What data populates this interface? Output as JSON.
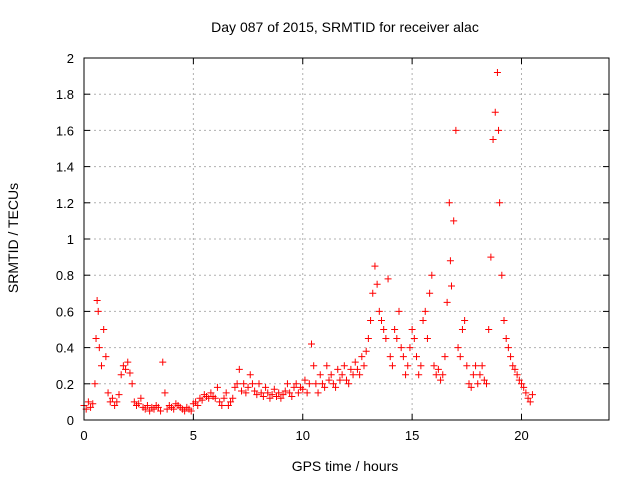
{
  "chart_data": {
    "type": "scatter",
    "title": "Day 087 of 2015, SRMTID for receiver alac",
    "xlabel": "GPS time / hours",
    "ylabel": "SRMTID / TECUs",
    "xlim": [
      0,
      24
    ],
    "ylim": [
      0,
      2
    ],
    "xticks": [
      0,
      5,
      10,
      15,
      20
    ],
    "xtick_labels": [
      "0",
      "5",
      "10",
      "15",
      "20"
    ],
    "yticks": [
      0,
      0.2,
      0.4,
      0.6,
      0.8,
      1,
      1.2,
      1.4,
      1.6,
      1.8,
      2
    ],
    "ytick_labels": [
      "0",
      "0.2",
      "0.4",
      "0.6",
      "0.8",
      "1",
      "1.2",
      "1.4",
      "1.6",
      "1.8",
      "2"
    ],
    "grid": true,
    "marker": "+",
    "color": "#ff0000",
    "series": [
      {
        "name": "SRMTID",
        "x": [
          0.0,
          0.1,
          0.2,
          0.3,
          0.4,
          0.5,
          0.55,
          0.6,
          0.65,
          0.7,
          0.8,
          0.9,
          1.0,
          1.1,
          1.2,
          1.3,
          1.4,
          1.5,
          1.6,
          1.7,
          1.8,
          1.9,
          2.0,
          2.1,
          2.2,
          2.3,
          2.4,
          2.5,
          2.6,
          2.7,
          2.8,
          2.9,
          3.0,
          3.1,
          3.2,
          3.3,
          3.4,
          3.5,
          3.6,
          3.7,
          3.8,
          3.9,
          4.0,
          4.1,
          4.2,
          4.3,
          4.4,
          4.5,
          4.6,
          4.7,
          4.8,
          4.9,
          5.0,
          5.1,
          5.2,
          5.3,
          5.4,
          5.5,
          5.6,
          5.7,
          5.8,
          5.9,
          6.0,
          6.1,
          6.2,
          6.3,
          6.4,
          6.5,
          6.6,
          6.7,
          6.8,
          6.9,
          7.0,
          7.1,
          7.2,
          7.3,
          7.4,
          7.5,
          7.6,
          7.7,
          7.8,
          7.9,
          8.0,
          8.1,
          8.2,
          8.3,
          8.4,
          8.5,
          8.6,
          8.7,
          8.8,
          8.9,
          9.0,
          9.1,
          9.2,
          9.3,
          9.4,
          9.5,
          9.6,
          9.7,
          9.8,
          9.9,
          10.0,
          10.1,
          10.2,
          10.3,
          10.4,
          10.5,
          10.6,
          10.7,
          10.8,
          10.9,
          11.0,
          11.1,
          11.2,
          11.3,
          11.4,
          11.5,
          11.6,
          11.7,
          11.8,
          11.9,
          12.0,
          12.1,
          12.2,
          12.3,
          12.4,
          12.5,
          12.6,
          12.7,
          12.8,
          12.9,
          13.0,
          13.1,
          13.2,
          13.3,
          13.4,
          13.5,
          13.6,
          13.7,
          13.8,
          13.9,
          14.0,
          14.1,
          14.2,
          14.3,
          14.4,
          14.5,
          14.6,
          14.7,
          14.8,
          14.9,
          15.0,
          15.1,
          15.2,
          15.3,
          15.4,
          15.5,
          15.6,
          15.7,
          15.8,
          15.9,
          16.0,
          16.1,
          16.2,
          16.3,
          16.4,
          16.5,
          16.6,
          16.7,
          16.75,
          16.8,
          16.9,
          17.0,
          17.1,
          17.2,
          17.3,
          17.4,
          17.5,
          17.6,
          17.7,
          17.8,
          17.9,
          18.0,
          18.1,
          18.2,
          18.3,
          18.4,
          18.5,
          18.6,
          18.7,
          18.8,
          18.9,
          18.95,
          19.0,
          19.1,
          19.2,
          19.3,
          19.4,
          19.5,
          19.6,
          19.7,
          19.8,
          19.9,
          20.0,
          20.1,
          20.2,
          20.3,
          20.4,
          20.5
        ],
        "y": [
          0.08,
          0.06,
          0.1,
          0.07,
          0.09,
          0.2,
          0.45,
          0.66,
          0.6,
          0.4,
          0.3,
          0.5,
          0.35,
          0.15,
          0.1,
          0.12,
          0.08,
          0.1,
          0.14,
          0.25,
          0.3,
          0.28,
          0.32,
          0.26,
          0.2,
          0.1,
          0.08,
          0.09,
          0.12,
          0.07,
          0.06,
          0.08,
          0.05,
          0.07,
          0.06,
          0.08,
          0.07,
          0.05,
          0.32,
          0.15,
          0.06,
          0.08,
          0.07,
          0.06,
          0.09,
          0.08,
          0.07,
          0.06,
          0.05,
          0.07,
          0.06,
          0.05,
          0.09,
          0.1,
          0.08,
          0.12,
          0.11,
          0.14,
          0.13,
          0.12,
          0.15,
          0.13,
          0.12,
          0.18,
          0.1,
          0.08,
          0.12,
          0.15,
          0.08,
          0.1,
          0.12,
          0.18,
          0.2,
          0.28,
          0.16,
          0.2,
          0.15,
          0.18,
          0.25,
          0.2,
          0.16,
          0.14,
          0.2,
          0.15,
          0.13,
          0.18,
          0.15,
          0.12,
          0.14,
          0.17,
          0.13,
          0.15,
          0.12,
          0.14,
          0.16,
          0.2,
          0.15,
          0.13,
          0.18,
          0.2,
          0.15,
          0.18,
          0.17,
          0.22,
          0.15,
          0.2,
          0.42,
          0.3,
          0.2,
          0.15,
          0.25,
          0.2,
          0.18,
          0.3,
          0.22,
          0.25,
          0.2,
          0.18,
          0.28,
          0.22,
          0.25,
          0.3,
          0.22,
          0.2,
          0.28,
          0.25,
          0.32,
          0.28,
          0.25,
          0.35,
          0.3,
          0.38,
          0.45,
          0.55,
          0.7,
          0.85,
          0.75,
          0.6,
          0.55,
          0.5,
          0.45,
          0.78,
          0.35,
          0.3,
          0.5,
          0.45,
          0.6,
          0.4,
          0.35,
          0.25,
          0.3,
          0.4,
          0.5,
          0.45,
          0.35,
          0.25,
          0.3,
          0.55,
          0.6,
          0.45,
          0.7,
          0.8,
          0.3,
          0.25,
          0.28,
          0.22,
          0.25,
          0.35,
          0.65,
          1.2,
          0.88,
          0.74,
          1.1,
          1.6,
          0.4,
          0.35,
          0.5,
          0.55,
          0.3,
          0.2,
          0.18,
          0.25,
          0.3,
          0.2,
          0.25,
          0.3,
          0.22,
          0.2,
          0.5,
          0.9,
          1.55,
          1.7,
          1.92,
          1.6,
          1.2,
          0.8,
          0.55,
          0.45,
          0.4,
          0.35,
          0.3,
          0.28,
          0.25,
          0.22,
          0.2,
          0.18,
          0.15,
          0.12,
          0.1,
          0.14
        ]
      }
    ]
  }
}
